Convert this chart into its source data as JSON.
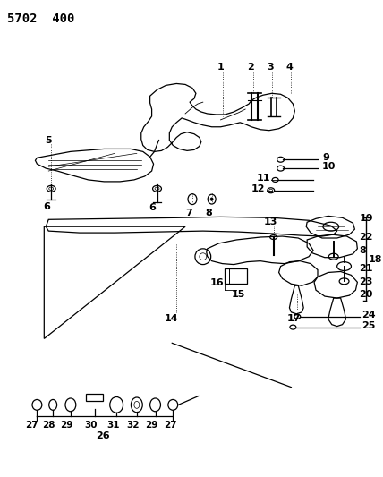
{
  "title": "5702  400",
  "background_color": "#ffffff",
  "line_color": "#000000",
  "title_fontsize": 10,
  "label_fontsize": 8,
  "figsize": [
    4.28,
    5.33
  ],
  "dpi": 100
}
